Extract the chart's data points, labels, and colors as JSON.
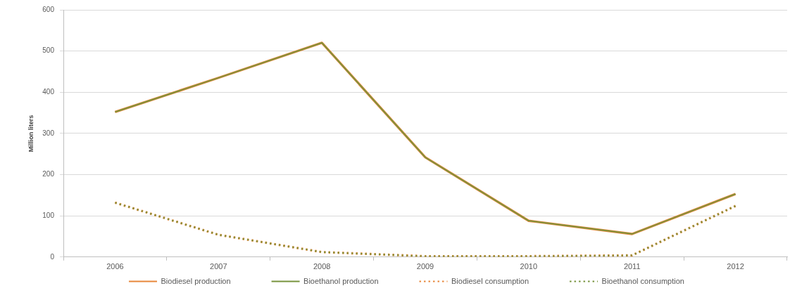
{
  "chart_data": {
    "type": "line",
    "ylabel": "Million liters",
    "categories": [
      "2006",
      "2007",
      "2008",
      "2009",
      "2010",
      "2011",
      "2012"
    ],
    "series": [
      {
        "name": "Biodiesel production",
        "color": "#e7873a",
        "line_style": "solid",
        "values": [
          352,
          435,
          520,
          242,
          88,
          56,
          153
        ]
      },
      {
        "name": "Bioethanol production",
        "color": "#77933c",
        "line_style": "solid",
        "values": [
          352,
          435,
          520,
          242,
          88,
          56,
          153
        ]
      },
      {
        "name": "Biodiesel consumption",
        "color": "#e7873a",
        "line_style": "dotted",
        "values": [
          132,
          54,
          12,
          2,
          2,
          4,
          124
        ]
      },
      {
        "name": "Bioethanol consumption",
        "color": "#77933c",
        "line_style": "dotted",
        "values": [
          132,
          54,
          12,
          2,
          2,
          4,
          124
        ]
      }
    ],
    "ylim": [
      0,
      600
    ],
    "yticks": [
      0,
      100,
      200,
      300,
      400,
      500,
      600
    ],
    "grid": "y",
    "legend": "bottom",
    "marker": "none"
  }
}
